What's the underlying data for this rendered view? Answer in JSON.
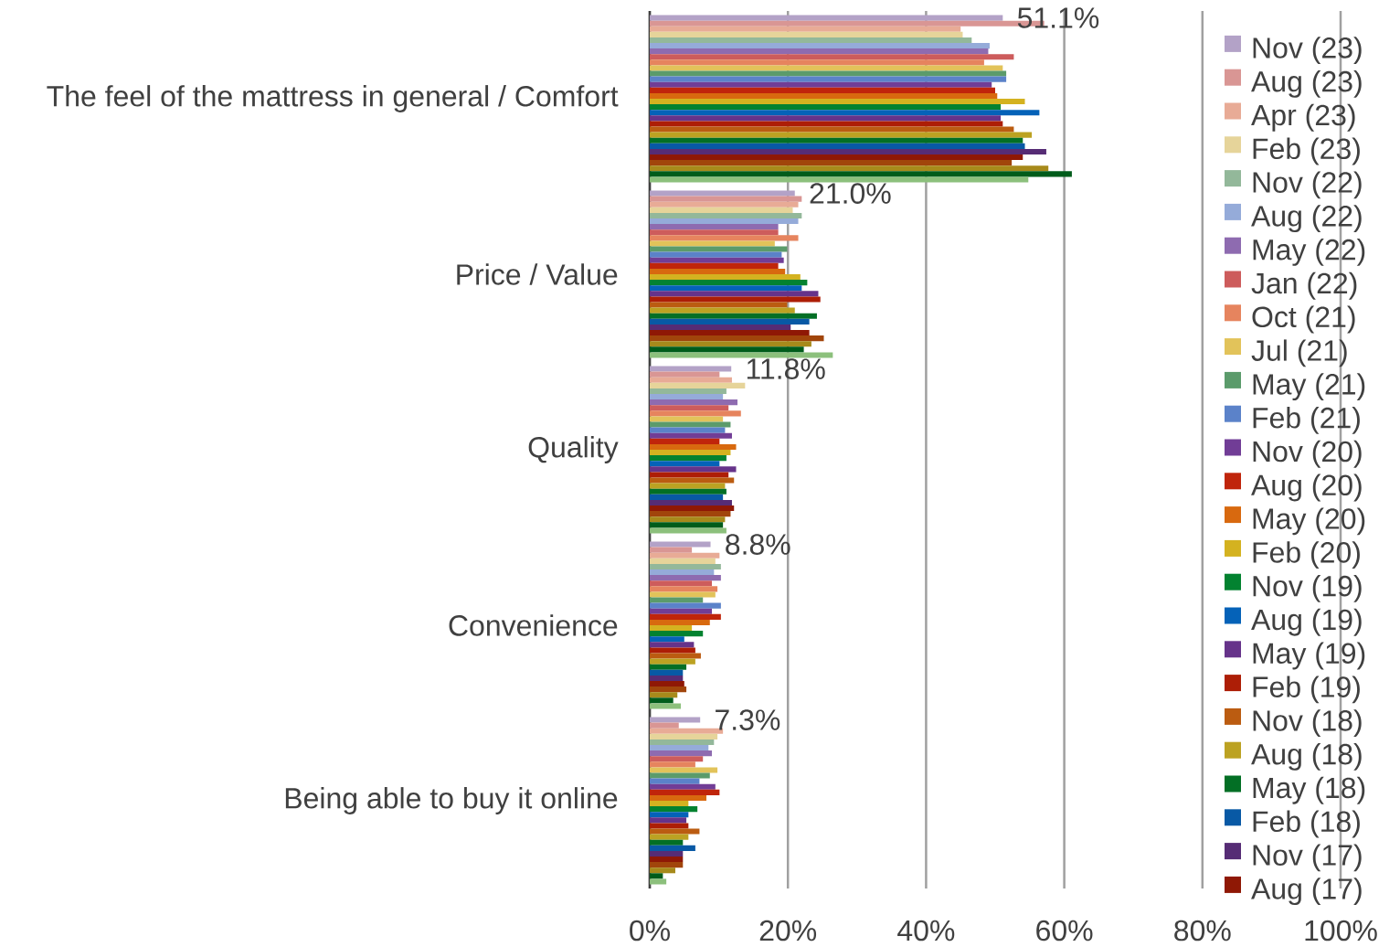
{
  "chart_data": {
    "type": "bar",
    "orientation": "horizontal",
    "categories": [
      "The feel of the mattress in general / Comfort",
      "Price / Value",
      "Quality",
      "Convenience",
      "Being able to buy it online"
    ],
    "xlim": [
      0,
      100
    ],
    "xticks": [
      {
        "value": 0,
        "label": "0%"
      },
      {
        "value": 20,
        "label": "20%"
      },
      {
        "value": 40,
        "label": "40%"
      },
      {
        "value": 60,
        "label": "60%"
      },
      {
        "value": 80,
        "label": "80%"
      },
      {
        "value": 100,
        "label": "100%"
      }
    ],
    "grid": "x",
    "legend": "right",
    "series": [
      {
        "name": "Nov (23)",
        "color": "#b3a2c7",
        "values": [
          51.1,
          21.0,
          11.8,
          8.8,
          7.3
        ],
        "value_labels": [
          "51.1%",
          "21.0%",
          "11.8%",
          "8.8%",
          "7.3%"
        ]
      },
      {
        "name": "Aug (23)",
        "color": "#d99694",
        "values": [
          57.1,
          22.0,
          10.1,
          6.1,
          4.2
        ]
      },
      {
        "name": "Apr (23)",
        "color": "#e8ab96",
        "values": [
          45.0,
          21.5,
          11.9,
          10.1,
          10.6
        ]
      },
      {
        "name": "Feb (23)",
        "color": "#e6d49a",
        "values": [
          45.3,
          20.7,
          13.8,
          9.5,
          9.8
        ]
      },
      {
        "name": "Nov (22)",
        "color": "#93b89a",
        "values": [
          46.6,
          22.0,
          11.1,
          10.3,
          9.3
        ]
      },
      {
        "name": "Aug (22)",
        "color": "#95abd9",
        "values": [
          49.2,
          21.5,
          10.6,
          9.3,
          8.5
        ]
      },
      {
        "name": "May (22)",
        "color": "#8e6bb0",
        "values": [
          49.0,
          18.6,
          12.7,
          10.3,
          9.0
        ]
      },
      {
        "name": "Jan (22)",
        "color": "#cd5c5c",
        "values": [
          52.7,
          18.6,
          11.4,
          9.0,
          7.7
        ]
      },
      {
        "name": "Oct (21)",
        "color": "#e6845e",
        "values": [
          48.4,
          21.5,
          13.2,
          9.8,
          6.6
        ]
      },
      {
        "name": "Jul (21)",
        "color": "#e2c35a",
        "values": [
          51.1,
          18.1,
          10.6,
          9.5,
          9.8
        ]
      },
      {
        "name": "May (21)",
        "color": "#5b9b6b",
        "values": [
          51.6,
          19.9,
          11.7,
          7.7,
          8.7
        ]
      },
      {
        "name": "Feb (21)",
        "color": "#5b82c9",
        "values": [
          51.6,
          19.1,
          10.9,
          10.3,
          7.2
        ]
      },
      {
        "name": "Nov (20)",
        "color": "#713d96",
        "values": [
          49.5,
          19.4,
          11.9,
          9.0,
          9.5
        ]
      },
      {
        "name": "Aug (20)",
        "color": "#c0250b",
        "values": [
          50.0,
          18.6,
          10.1,
          10.3,
          10.1
        ]
      },
      {
        "name": "May (20)",
        "color": "#d8690f",
        "values": [
          50.3,
          19.6,
          12.5,
          8.7,
          8.2
        ]
      },
      {
        "name": "Feb (20)",
        "color": "#d4b220",
        "values": [
          54.3,
          21.8,
          11.7,
          6.1,
          5.6
        ]
      },
      {
        "name": "Nov (19)",
        "color": "#038230",
        "values": [
          50.8,
          22.8,
          11.1,
          7.7,
          6.9
        ]
      },
      {
        "name": "Aug (19)",
        "color": "#0562b8",
        "values": [
          56.4,
          22.0,
          10.1,
          5.0,
          5.6
        ]
      },
      {
        "name": "May (19)",
        "color": "#66338a",
        "values": [
          50.8,
          24.4,
          12.5,
          6.4,
          5.3
        ]
      },
      {
        "name": "Feb (19)",
        "color": "#ad1e06",
        "values": [
          51.1,
          24.7,
          11.4,
          6.6,
          5.6
        ]
      },
      {
        "name": "Nov (18)",
        "color": "#bb5c11",
        "values": [
          52.7,
          19.9,
          12.2,
          7.4,
          7.2
        ]
      },
      {
        "name": "Aug (18)",
        "color": "#bca222",
        "values": [
          55.3,
          21.0,
          10.9,
          6.6,
          5.6
        ]
      },
      {
        "name": "May (18)",
        "color": "#036f25",
        "values": [
          54.0,
          24.2,
          11.1,
          5.3,
          4.8
        ]
      },
      {
        "name": "Feb (18)",
        "color": "#0859a5",
        "values": [
          54.3,
          23.1,
          10.6,
          4.8,
          6.6
        ]
      },
      {
        "name": "Nov (17)",
        "color": "#562c75",
        "values": [
          57.4,
          20.4,
          11.9,
          4.8,
          4.8
        ]
      },
      {
        "name": "Aug (17)",
        "color": "#8f1805",
        "values": [
          54.0,
          23.1,
          12.2,
          5.0,
          4.8
        ]
      },
      {
        "color": "#a1450b",
        "values": [
          52.4,
          25.2,
          11.7,
          5.3,
          4.8
        ]
      },
      {
        "color": "#a78a1b",
        "values": [
          57.7,
          23.4,
          10.9,
          4.0,
          3.7
        ]
      },
      {
        "color": "#005c1b",
        "values": [
          61.1,
          22.3,
          10.6,
          3.4,
          1.9
        ]
      },
      {
        "color": "#8cc07c",
        "values": [
          54.8,
          26.5,
          11.1,
          4.5,
          2.4
        ]
      }
    ]
  }
}
